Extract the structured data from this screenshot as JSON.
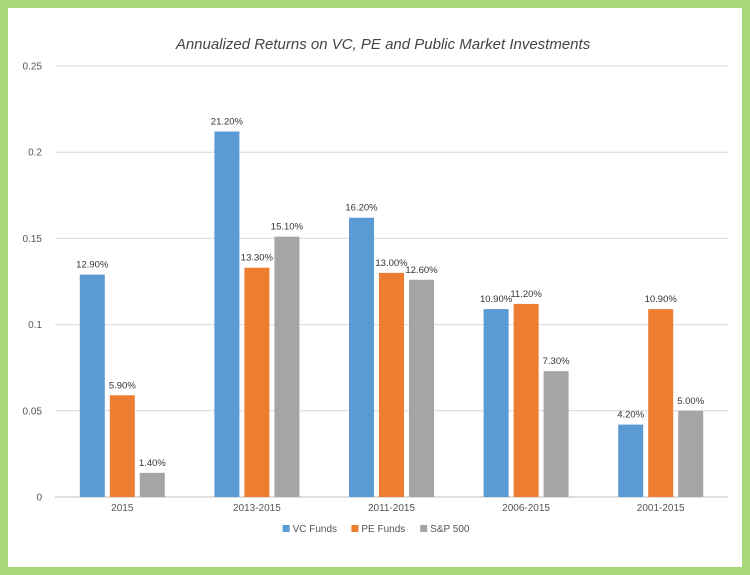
{
  "chart_data": {
    "type": "bar",
    "title": "Annualized Returns on VC, PE and Public Market Investments",
    "xlabel": "",
    "ylabel": "",
    "ylim": [
      0,
      0.25
    ],
    "yticks": [
      "0",
      "0.05",
      "0.1",
      "0.15",
      "0.2",
      "0.25"
    ],
    "categories": [
      "2015",
      "2013-2015",
      "2011-2015",
      "2006-2015",
      "2001-2015"
    ],
    "series": [
      {
        "name": "VC Funds",
        "color": "#5b9bd5",
        "values": [
          0.129,
          0.212,
          0.162,
          0.109,
          0.042
        ],
        "labels": [
          "12.90%",
          "21.20%",
          "16.20%",
          "10.90%",
          "4.20%"
        ]
      },
      {
        "name": "PE Funds",
        "color": "#ed7d31",
        "values": [
          0.059,
          0.133,
          0.13,
          0.112,
          0.109
        ],
        "labels": [
          "5.90%",
          "13.30%",
          "13.00%",
          "11.20%",
          "10.90%"
        ]
      },
      {
        "name": "S&P 500",
        "color": "#a5a5a5",
        "values": [
          0.014,
          0.151,
          0.126,
          0.073,
          0.05
        ],
        "labels": [
          "1.40%",
          "15.10%",
          "12.60%",
          "7.30%",
          "5.00%"
        ]
      }
    ],
    "grid": true,
    "legend_position": "bottom"
  }
}
